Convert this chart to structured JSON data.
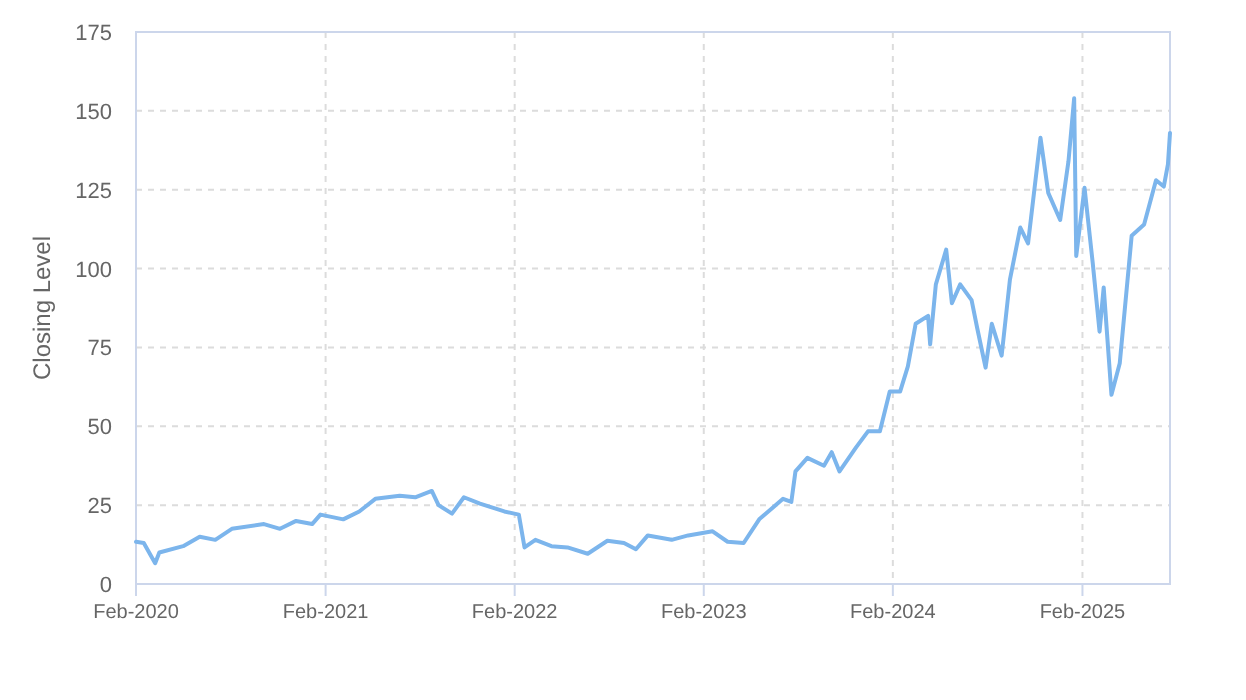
{
  "chart_data": {
    "type": "line",
    "ylabel": "Closing Level",
    "x": [
      "2020-02-01",
      "2020-02-16",
      "2020-03-09",
      "2020-03-17",
      "2020-05-02",
      "2020-06-03",
      "2020-07-03",
      "2020-08-04",
      "2020-10-05",
      "2020-11-05",
      "2020-12-06",
      "2021-01-06",
      "2021-01-22",
      "2021-03-07",
      "2021-04-07",
      "2021-05-08",
      "2021-06-24",
      "2021-07-24",
      "2021-08-25",
      "2021-09-07",
      "2021-10-03",
      "2021-10-26",
      "2021-11-26",
      "2022-01-12",
      "2022-02-09",
      "2022-02-20",
      "2022-03-13",
      "2022-04-13",
      "2022-05-14",
      "2022-06-22",
      "2022-07-30",
      "2022-08-31",
      "2022-09-23",
      "2022-10-16",
      "2022-12-01",
      "2023-01-02",
      "2023-02-18",
      "2023-03-19",
      "2023-04-19",
      "2023-05-19",
      "2023-07-04",
      "2023-07-20",
      "2023-07-28",
      "2023-08-20",
      "2023-09-21",
      "2023-10-06",
      "2023-10-21",
      "2023-11-22",
      "2023-12-15",
      "2024-01-07",
      "2024-01-26",
      "2024-02-15",
      "2024-03-01",
      "2024-03-16",
      "2024-04-09",
      "2024-04-13",
      "2024-04-24",
      "2024-05-14",
      "2024-05-25",
      "2024-06-10",
      "2024-07-02",
      "2024-07-13",
      "2024-07-29",
      "2024-08-10",
      "2024-08-29",
      "2024-09-14",
      "2024-10-04",
      "2024-10-19",
      "2024-11-12",
      "2024-11-27",
      "2024-12-20",
      "2025-01-05",
      "2025-01-16",
      "2025-01-20",
      "2025-02-05",
      "2025-02-21",
      "2025-03-06",
      "2025-03-14",
      "2025-03-29",
      "2025-04-14",
      "2025-05-07",
      "2025-05-31",
      "2025-06-23",
      "2025-07-08",
      "2025-07-16",
      "2025-07-20"
    ],
    "series": [
      {
        "color": "#7cb5ec",
        "values": [
          13.4,
          13,
          6.6,
          10,
          12,
          15,
          14,
          17.5,
          19,
          17.5,
          20,
          19,
          22,
          20.5,
          23,
          27,
          28,
          27.5,
          29.5,
          25,
          22.3,
          27.5,
          25.5,
          23,
          22,
          11.6,
          14,
          12,
          11.6,
          9.6,
          13.7,
          13,
          11,
          15.4,
          14,
          15.4,
          16.7,
          13.4,
          13,
          20.5,
          27,
          26,
          35.7,
          40,
          37.5,
          41.8,
          35.7,
          43.3,
          48.4,
          48.4,
          61,
          61,
          69,
          82.5,
          85,
          76,
          95,
          106,
          89,
          95,
          90,
          81,
          68.6,
          82.5,
          72.4,
          96.5,
          113,
          108,
          141.5,
          124,
          115.4,
          134,
          154,
          104,
          125.6,
          101.5,
          80,
          94,
          60,
          70,
          110.4,
          114,
          128,
          126,
          133,
          143
        ]
      }
    ],
    "xlim": [
      "2020-02-01",
      "2025-07-20"
    ],
    "xticks": [
      {
        "value": "2020-02-01",
        "label": "Feb-2020"
      },
      {
        "value": "2021-02-01",
        "label": "Feb-2021"
      },
      {
        "value": "2022-02-01",
        "label": "Feb-2022"
      },
      {
        "value": "2023-02-01",
        "label": "Feb-2023"
      },
      {
        "value": "2024-02-01",
        "label": "Feb-2024"
      },
      {
        "value": "2025-02-01",
        "label": "Feb-2025"
      }
    ],
    "ylim": [
      0,
      175
    ],
    "yticks": [
      0,
      25,
      50,
      75,
      100,
      125,
      150,
      175
    ],
    "grid": true,
    "line_style": "solid",
    "marker": "none"
  }
}
